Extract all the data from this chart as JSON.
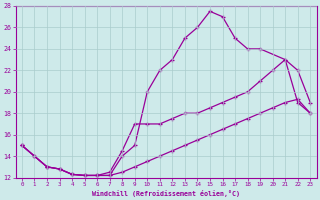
{
  "xlabel": "Windchill (Refroidissement éolien,°C)",
  "background_color": "#ceeaea",
  "grid_color": "#aacccc",
  "line_color": "#990099",
  "xlim": [
    -0.5,
    23.5
  ],
  "ylim": [
    12,
    28
  ],
  "yticks": [
    12,
    14,
    16,
    18,
    20,
    22,
    24,
    26,
    28
  ],
  "xticks": [
    0,
    1,
    2,
    3,
    4,
    5,
    6,
    7,
    8,
    9,
    10,
    11,
    12,
    13,
    14,
    15,
    16,
    17,
    18,
    19,
    20,
    21,
    22,
    23
  ],
  "curve1_x": [
    0,
    1,
    2,
    3,
    4,
    5,
    6,
    7,
    8,
    9,
    10,
    11,
    12,
    13,
    14,
    15,
    16,
    17,
    18,
    19,
    21,
    22,
    23
  ],
  "curve1_y": [
    15,
    14,
    13,
    12.8,
    12.3,
    12.2,
    12.2,
    12.2,
    14,
    15,
    20,
    22,
    23,
    25,
    26,
    27.5,
    27,
    25,
    24,
    24,
    23,
    22,
    19
  ],
  "curve2_x": [
    0,
    1,
    2,
    3,
    4,
    5,
    6,
    7,
    8,
    9,
    10,
    11,
    12,
    13,
    14,
    15,
    16,
    17,
    18,
    19,
    20,
    21,
    22,
    23
  ],
  "curve2_y": [
    15,
    14,
    13,
    12.8,
    12.3,
    12.2,
    12.2,
    12.5,
    14.5,
    17,
    17,
    17,
    17.5,
    18,
    18,
    18.5,
    19,
    19.5,
    20,
    21,
    22,
    23,
    19,
    18
  ],
  "curve3_x": [
    0,
    1,
    2,
    3,
    4,
    5,
    6,
    7,
    8,
    9,
    10,
    11,
    12,
    13,
    14,
    15,
    16,
    17,
    18,
    19,
    20,
    21,
    22,
    23
  ],
  "curve3_y": [
    15,
    14,
    13,
    12.8,
    12.3,
    12.2,
    12.2,
    12.2,
    12.5,
    13,
    13.5,
    14,
    14.5,
    15,
    15.5,
    16,
    16.5,
    17,
    17.5,
    18,
    18.5,
    19,
    19.3,
    18
  ]
}
